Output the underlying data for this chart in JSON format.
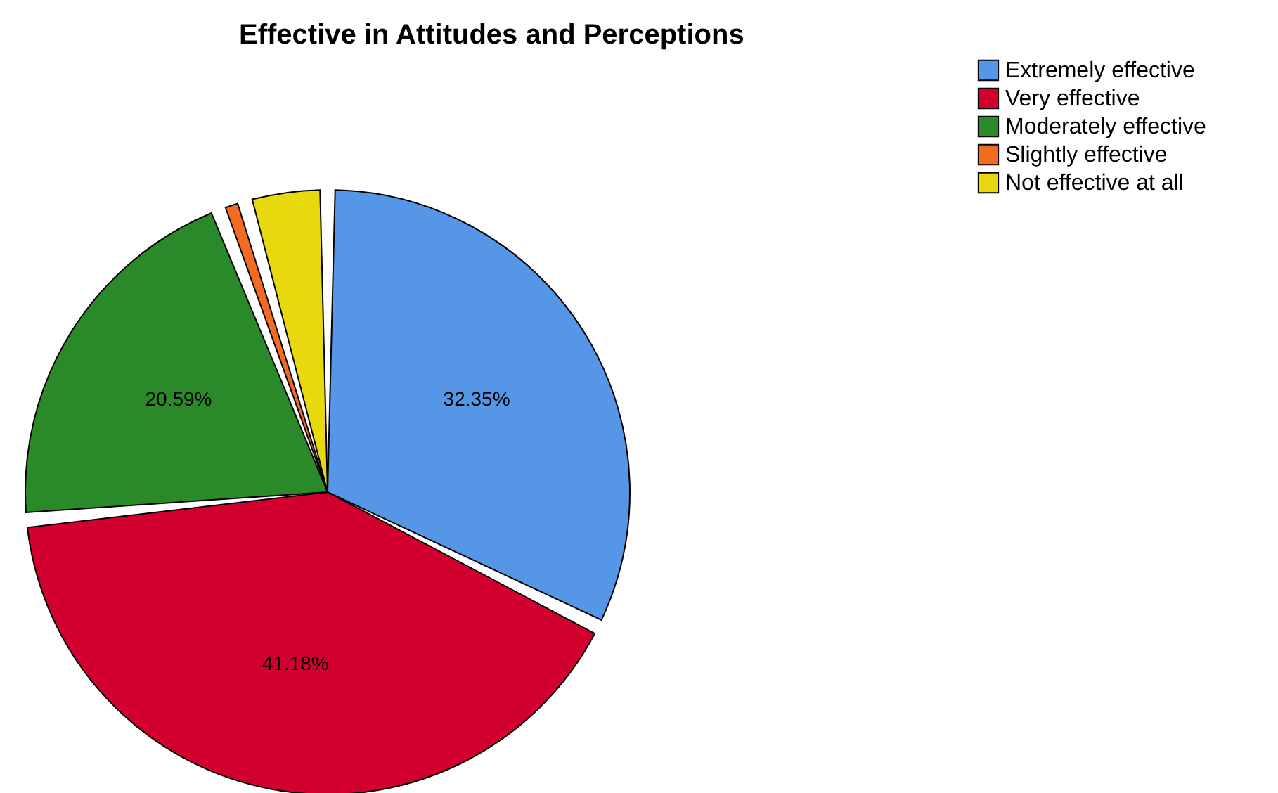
{
  "chart_data": {
    "type": "pie",
    "title": "Effective in Attitudes and Perceptions",
    "categories": [
      "Extremely effective",
      "Very effective",
      "Moderately effective",
      "Slightly effective",
      "Not effective at all"
    ],
    "values": [
      32.35,
      41.18,
      20.59,
      1.47,
      4.41
    ],
    "colors": [
      "#5596e6",
      "#d1002f",
      "#2a8a2a",
      "#f26b21",
      "#e8d90f"
    ],
    "value_labels": [
      "32.35%",
      "41.18%",
      "20.59%",
      null,
      null
    ],
    "legend": "top right"
  }
}
